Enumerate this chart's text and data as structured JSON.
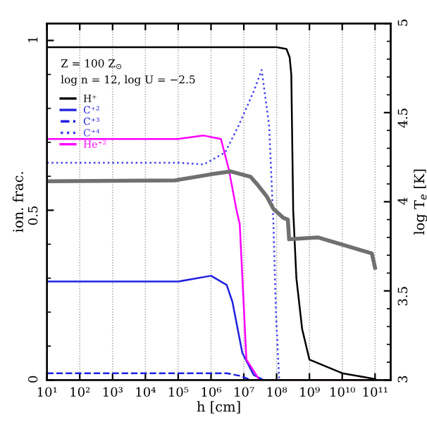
{
  "chart_data": {
    "type": "line",
    "xlabel": "h [cm]",
    "ylabel": "ion. frac.",
    "y2label": "log T$_{e}$ [K]",
    "log": "x",
    "grid": "x",
    "legend": "top left",
    "marker": "none",
    "annotations": [
      "Z = 100 Z$_{⊙}$",
      "log n = 12, log U = −2.5"
    ],
    "xlim": [
      10,
      300000000000.0
    ],
    "ylim": [
      0,
      1.05
    ],
    "y2lim": [
      3,
      5
    ],
    "xticks": [
      {
        "value": 10,
        "label": "10¹"
      },
      {
        "value": 100,
        "label": "10²"
      },
      {
        "value": 1000,
        "label": "10³"
      },
      {
        "value": 10000.0,
        "label": "10⁴"
      },
      {
        "value": 100000.0,
        "label": "10⁵"
      },
      {
        "value": 1000000.0,
        "label": "10⁶"
      },
      {
        "value": 10000000.0,
        "label": "10⁷"
      },
      {
        "value": 100000000.0,
        "label": "10⁸"
      },
      {
        "value": 1000000000.0,
        "label": "10⁹"
      },
      {
        "value": 10000000000.0,
        "label": "10¹⁰"
      },
      {
        "value": 100000000000.0,
        "label": "10¹¹"
      }
    ],
    "yticks": [
      0,
      0.5,
      1
    ],
    "y2ticks": [
      3,
      3.5,
      4,
      4.5,
      5
    ],
    "series": [
      {
        "name": "H⁺",
        "color": "#000000",
        "line_style": "solid",
        "x": [
          10,
          10000.0,
          10000000.0,
          100000000.0,
          200000000.0,
          250000000.0,
          280000000.0,
          320000000.0,
          400000000.0,
          600000000.0,
          1000000000.0,
          10000000000.0,
          100000000000.0
        ],
        "values": [
          0.98,
          0.98,
          0.98,
          0.98,
          0.975,
          0.95,
          0.9,
          0.5,
          0.3,
          0.15,
          0.06,
          0.02,
          0.003
        ]
      },
      {
        "name": "C⁺²",
        "color": "#2020e0",
        "line_style": "solid",
        "x": [
          10,
          10000.0,
          100000.0,
          1000000.0,
          3000000.0,
          4500000.0,
          9000000.0,
          20000000.0,
          40000000.0,
          100000000.0,
          100000000000.0
        ],
        "values": [
          0.29,
          0.29,
          0.29,
          0.307,
          0.28,
          0.23,
          0.08,
          0.015,
          0,
          0,
          0
        ]
      },
      {
        "name": "C⁺³",
        "color": "#2020e0",
        "line_style": "dashed",
        "x": [
          10,
          100000.0,
          3000000.0,
          8000000.0,
          16000000.0,
          100000000.0,
          100000000000.0
        ],
        "values": [
          0.02,
          0.02,
          0.02,
          0.012,
          0,
          0,
          0
        ]
      },
      {
        "name": "C⁺⁴",
        "color": "#4040f0",
        "line_style": "dotted",
        "x": [
          10,
          100000.0,
          600000.0,
          2700000.0,
          7000000.0,
          20000000.0,
          35000000.0,
          59000000.0,
          80000000.0,
          95000000.0,
          120000000.0,
          100000000000.0
        ],
        "values": [
          0.64,
          0.64,
          0.635,
          0.67,
          0.75,
          0.85,
          0.913,
          0.75,
          0.46,
          0.2,
          0,
          0
        ]
      },
      {
        "name": "He⁺²",
        "color": "#ff00ff",
        "line_style": "solid",
        "x": [
          10,
          100000.0,
          600000.0,
          2000000.0,
          3500000.0,
          6000000.0,
          7500000.0,
          12000000.0,
          30000000.0,
          100000000000.0
        ],
        "values": [
          0.71,
          0.71,
          0.72,
          0.71,
          0.62,
          0.5,
          0.46,
          0.06,
          0,
          0
        ]
      },
      {
        "color": "#707070",
        "axis": "y2",
        "line_style": "solid",
        "x": [
          10,
          80000.0,
          1000000.0,
          4000000.0,
          16000000.0,
          25000000.0,
          50000000.0,
          80000000.0,
          160000000.0,
          220000000.0,
          240000000.0,
          1800000000.0,
          80000000000.0,
          100000000000.0
        ],
        "values": [
          4.115,
          4.12,
          4.154,
          4.17,
          4.14,
          4.1,
          4.03,
          3.96,
          3.91,
          3.9,
          3.79,
          3.8,
          3.71,
          3.63
        ]
      }
    ]
  }
}
